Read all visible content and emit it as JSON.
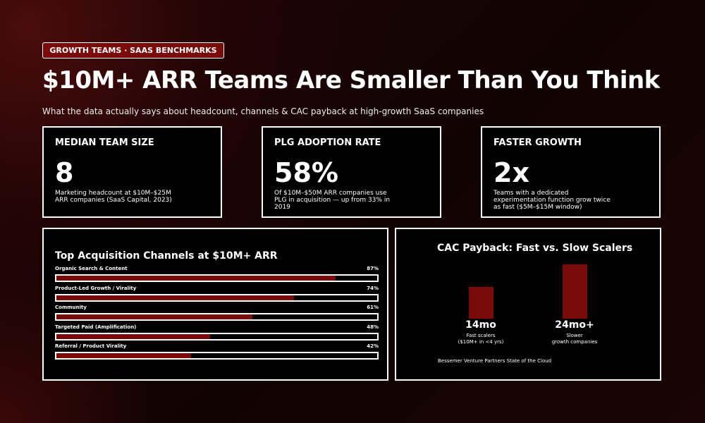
{
  "header": {
    "tag": "GROWTH TEAMS · SAAS BENCHMARKS",
    "title": "$10M+ ARR Teams Are Smaller Than You Think",
    "subtitle": "What the data actually says about headcount, channels & CAC payback at high-growth SaaS companies"
  },
  "stats": [
    {
      "label": "MEDIAN TEAM SIZE",
      "value": "8",
      "description": "Marketing headcount at $10M–$25M ARR companies (SaaS Capital, 2023)"
    },
    {
      "label": "PLG ADOPTION RATE",
      "value": "58%",
      "description": "Of $10M–$50M ARR companies use PLG in acquisition — up from 33% in 2019"
    },
    {
      "label": "FASTER GROWTH",
      "value": "2x",
      "description": "Teams with a dedicated experimentation function grow twice as fast ($5M–$15M window)"
    }
  ],
  "chart_data": [
    {
      "type": "hbar",
      "title": "Top Acquisition Channels at $10M+ ARR",
      "color": "#7a0b0b",
      "categories": [
        "Organic Search & Content",
        "Product-Led Growth / Virality",
        "Community",
        "Targeted Paid (Amplification)",
        "Referral / Product Virality"
      ],
      "values": [
        87,
        74,
        61,
        48,
        42
      ],
      "value_labels": [
        "87%",
        "74%",
        "61%",
        "48%",
        "42%"
      ],
      "xlim": [
        0,
        100
      ]
    },
    {
      "type": "bar",
      "title": "CAC Payback: Fast vs. Slow Scalers",
      "color": "#7a0b0b",
      "categories": [
        "Fast scalers\n($10M+ in <4 yrs)",
        "Slower\ngrowth companies"
      ],
      "values": [
        14,
        24
      ],
      "value_labels": [
        "14mo",
        "24mo+"
      ],
      "source": "Bessemer Venture Partners State of the Cloud"
    }
  ]
}
